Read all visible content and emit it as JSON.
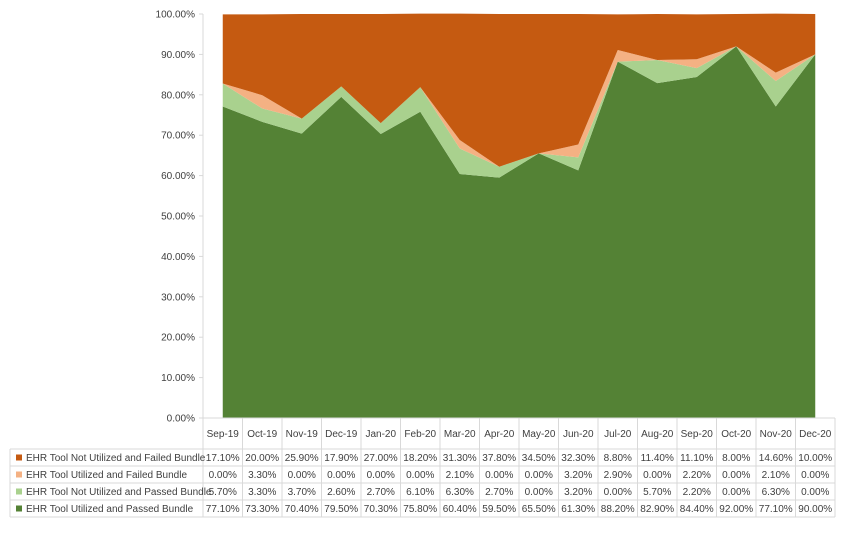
{
  "chart_data": {
    "type": "area",
    "stacked": true,
    "categories": [
      "Sep-19",
      "Oct-19",
      "Nov-19",
      "Dec-19",
      "Jan-20",
      "Feb-20",
      "Mar-20",
      "Apr-20",
      "May-20",
      "Jun-20",
      "Jul-20",
      "Aug-20",
      "Sep-20",
      "Oct-20",
      "Nov-20",
      "Dec-20"
    ],
    "y_ticks": [
      "0.00%",
      "10.00%",
      "20.00%",
      "30.00%",
      "40.00%",
      "50.00%",
      "60.00%",
      "70.00%",
      "80.00%",
      "90.00%",
      "100.00%"
    ],
    "ylim": [
      0,
      100
    ],
    "grid": false,
    "legend_placement": "data-table-left",
    "series": [
      {
        "name": "EHR Tool Utilized and Passed Bundle",
        "color": "#548235",
        "values": [
          77.1,
          73.3,
          70.4,
          79.5,
          70.3,
          75.8,
          60.4,
          59.5,
          65.5,
          61.3,
          88.2,
          82.9,
          84.4,
          92.0,
          77.1,
          90.0
        ],
        "labels": [
          "77.10%",
          "73.30%",
          "70.40%",
          "79.50%",
          "70.30%",
          "75.80%",
          "60.40%",
          "59.50%",
          "65.50%",
          "61.30%",
          "88.20%",
          "82.90%",
          "84.40%",
          "92.00%",
          "77.10%",
          "90.00%"
        ]
      },
      {
        "name": "EHR Tool Not Utilized and Passed Bundle",
        "color": "#a9d18e",
        "values": [
          5.7,
          3.3,
          3.7,
          2.6,
          2.7,
          6.1,
          6.3,
          2.7,
          0.0,
          3.2,
          0.0,
          5.7,
          2.2,
          0.0,
          6.3,
          0.0
        ],
        "labels": [
          "5.70%",
          "3.30%",
          "3.70%",
          "2.60%",
          "2.70%",
          "6.10%",
          "6.30%",
          "2.70%",
          "0.00%",
          "3.20%",
          "0.00%",
          "5.70%",
          "2.20%",
          "0.00%",
          "6.30%",
          "0.00%"
        ]
      },
      {
        "name": "EHR Tool Utilized and Failed Bundle",
        "color": "#f4b183",
        "values": [
          0.0,
          3.3,
          0.0,
          0.0,
          0.0,
          0.0,
          2.1,
          0.0,
          0.0,
          3.2,
          2.9,
          0.0,
          2.2,
          0.0,
          2.1,
          0.0
        ],
        "labels": [
          "0.00%",
          "3.30%",
          "0.00%",
          "0.00%",
          "0.00%",
          "0.00%",
          "2.10%",
          "0.00%",
          "0.00%",
          "3.20%",
          "2.90%",
          "0.00%",
          "2.20%",
          "0.00%",
          "2.10%",
          "0.00%"
        ]
      },
      {
        "name": "EHR Tool Not Utilized and Failed Bundle",
        "color": "#c55a11",
        "values": [
          17.1,
          20.0,
          25.9,
          17.9,
          27.0,
          18.2,
          31.3,
          37.8,
          34.5,
          32.3,
          8.8,
          11.4,
          11.1,
          8.0,
          14.6,
          10.0
        ],
        "labels": [
          "17.10%",
          "20.00%",
          "25.90%",
          "17.90%",
          "27.00%",
          "18.20%",
          "31.30%",
          "37.80%",
          "34.50%",
          "32.30%",
          "8.80%",
          "11.40%",
          "11.10%",
          "8.00%",
          "14.60%",
          "10.00%"
        ]
      }
    ]
  }
}
